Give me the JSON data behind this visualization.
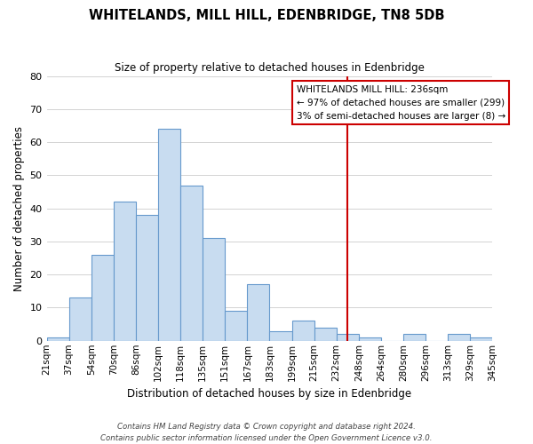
{
  "title": "WHITELANDS, MILL HILL, EDENBRIDGE, TN8 5DB",
  "subtitle": "Size of property relative to detached houses in Edenbridge",
  "xlabel": "Distribution of detached houses by size in Edenbridge",
  "ylabel": "Number of detached properties",
  "bin_labels": [
    "21sqm",
    "37sqm",
    "54sqm",
    "70sqm",
    "86sqm",
    "102sqm",
    "118sqm",
    "135sqm",
    "151sqm",
    "167sqm",
    "183sqm",
    "199sqm",
    "215sqm",
    "232sqm",
    "248sqm",
    "264sqm",
    "280sqm",
    "296sqm",
    "313sqm",
    "329sqm",
    "345sqm"
  ],
  "bar_heights": [
    1,
    13,
    26,
    42,
    38,
    64,
    47,
    31,
    9,
    17,
    3,
    6,
    4,
    2,
    1,
    0,
    2,
    0,
    2,
    1
  ],
  "bar_color": "#c8dcf0",
  "bar_edge_color": "#6699cc",
  "vline_position": 13.5,
  "vline_color": "#cc0000",
  "ylim": [
    0,
    80
  ],
  "yticks": [
    0,
    10,
    20,
    30,
    40,
    50,
    60,
    70,
    80
  ],
  "annotation_title": "WHITELANDS MILL HILL: 236sqm",
  "annotation_line1": "← 97% of detached houses are smaller (299)",
  "annotation_line2": "3% of semi-detached houses are larger (8) →",
  "footnote1": "Contains HM Land Registry data © Crown copyright and database right 2024.",
  "footnote2": "Contains public sector information licensed under the Open Government Licence v3.0.",
  "grid_color": "#cccccc"
}
